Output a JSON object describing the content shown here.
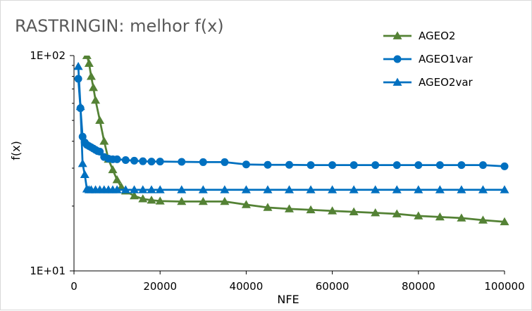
{
  "chart_data": {
    "type": "line",
    "title": "RASTRINGIN: melhor f(x)",
    "xlabel": "NFE",
    "ylabel": "f(x)",
    "xlim": [
      0,
      100000
    ],
    "ylim": [
      10,
      100
    ],
    "y_scale": "log",
    "x_ticks": [
      0,
      20000,
      40000,
      60000,
      80000,
      100000
    ],
    "x_tick_labels": [
      "0",
      "20000",
      "40000",
      "60000",
      "80000",
      "100000"
    ],
    "y_ticks": [
      10,
      100
    ],
    "y_tick_labels": [
      "1E+01",
      "1E+02"
    ],
    "grid": false,
    "legend_position": "top-right",
    "series": [
      {
        "name": "AGEO2",
        "color": "#548235",
        "marker": "triangle",
        "points": [
          [
            3000,
            100
          ],
          [
            3500,
            92
          ],
          [
            4000,
            80
          ],
          [
            4500,
            71
          ],
          [
            5000,
            62
          ],
          [
            6000,
            50
          ],
          [
            7000,
            40
          ],
          [
            8000,
            33
          ],
          [
            9000,
            29.5
          ],
          [
            10000,
            26.5
          ],
          [
            11000,
            24.5
          ],
          [
            12000,
            23.5
          ],
          [
            14000,
            22.3
          ],
          [
            16000,
            21.6
          ],
          [
            18000,
            21.3
          ],
          [
            20000,
            21.1
          ],
          [
            25000,
            21.0
          ],
          [
            30000,
            21.0
          ],
          [
            35000,
            21.0
          ],
          [
            40000,
            20.3
          ],
          [
            45000,
            19.7
          ],
          [
            50000,
            19.4
          ],
          [
            55000,
            19.2
          ],
          [
            60000,
            19.0
          ],
          [
            65000,
            18.8
          ],
          [
            70000,
            18.6
          ],
          [
            75000,
            18.4
          ],
          [
            80000,
            18.0
          ],
          [
            85000,
            17.8
          ],
          [
            90000,
            17.6
          ],
          [
            95000,
            17.2
          ],
          [
            100000,
            16.9
          ]
        ]
      },
      {
        "name": "AGEO1var",
        "color": "#0070C0",
        "marker": "circle",
        "points": [
          [
            1000,
            78
          ],
          [
            1500,
            57
          ],
          [
            2000,
            42
          ],
          [
            2500,
            39.5
          ],
          [
            3000,
            38.5
          ],
          [
            3500,
            38
          ],
          [
            4000,
            37.5
          ],
          [
            4500,
            37
          ],
          [
            5000,
            36.5
          ],
          [
            5500,
            36
          ],
          [
            6000,
            35.8
          ],
          [
            7000,
            33.8
          ],
          [
            8000,
            33.2
          ],
          [
            9000,
            33
          ],
          [
            10000,
            33
          ],
          [
            12000,
            32.7
          ],
          [
            14000,
            32.5
          ],
          [
            16000,
            32.3
          ],
          [
            18000,
            32.2
          ],
          [
            20000,
            32.2
          ],
          [
            25000,
            32.1
          ],
          [
            30000,
            32
          ],
          [
            35000,
            32
          ],
          [
            40000,
            31.2
          ],
          [
            45000,
            31.1
          ],
          [
            50000,
            31.1
          ],
          [
            55000,
            31.0
          ],
          [
            60000,
            31.0
          ],
          [
            65000,
            31.0
          ],
          [
            70000,
            31.0
          ],
          [
            75000,
            31.0
          ],
          [
            80000,
            31.0
          ],
          [
            85000,
            31.0
          ],
          [
            90000,
            31.0
          ],
          [
            95000,
            31.0
          ],
          [
            100000,
            30.6
          ]
        ]
      },
      {
        "name": "AGEO2var",
        "color": "#0070C0",
        "marker": "triangle",
        "points": [
          [
            1000,
            89
          ],
          [
            1500,
            58
          ],
          [
            2000,
            31.5
          ],
          [
            2500,
            28
          ],
          [
            3000,
            24
          ],
          [
            3500,
            23.8
          ],
          [
            4000,
            23.8
          ],
          [
            5000,
            23.8
          ],
          [
            6000,
            23.8
          ],
          [
            7000,
            23.8
          ],
          [
            8000,
            23.8
          ],
          [
            9000,
            23.8
          ],
          [
            10000,
            23.8
          ],
          [
            12000,
            23.8
          ],
          [
            14000,
            23.8
          ],
          [
            16000,
            23.8
          ],
          [
            18000,
            23.8
          ],
          [
            20000,
            23.8
          ],
          [
            25000,
            23.8
          ],
          [
            30000,
            23.8
          ],
          [
            35000,
            23.8
          ],
          [
            40000,
            23.8
          ],
          [
            45000,
            23.8
          ],
          [
            50000,
            23.8
          ],
          [
            55000,
            23.8
          ],
          [
            60000,
            23.8
          ],
          [
            65000,
            23.8
          ],
          [
            70000,
            23.8
          ],
          [
            75000,
            23.8
          ],
          [
            80000,
            23.8
          ],
          [
            85000,
            23.8
          ],
          [
            90000,
            23.8
          ],
          [
            95000,
            23.8
          ],
          [
            100000,
            23.8
          ]
        ]
      }
    ]
  }
}
